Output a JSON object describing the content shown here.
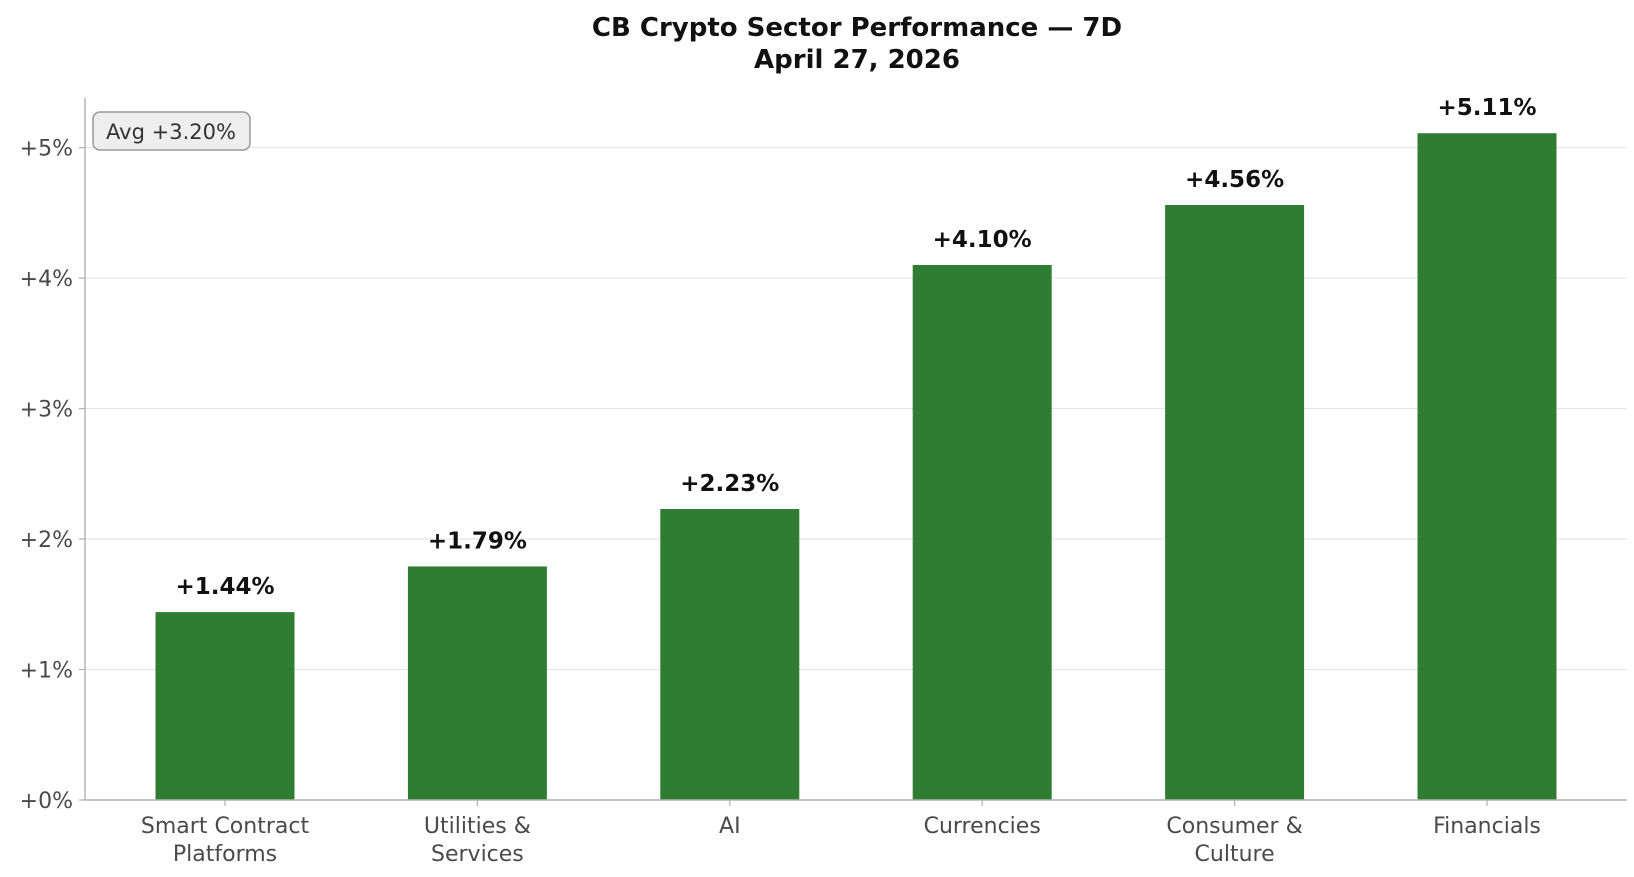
{
  "chart_data": {
    "type": "bar",
    "title": "CB Crypto Sector Performance — 7D",
    "subtitle": "April 27, 2026",
    "categories": [
      [
        "Smart Contract",
        "Platforms"
      ],
      [
        "Utilities &",
        "Services"
      ],
      [
        "AI"
      ],
      [
        "Currencies"
      ],
      [
        "Consumer &",
        "Culture"
      ],
      [
        "Financials"
      ]
    ],
    "values": [
      1.44,
      1.79,
      2.23,
      4.1,
      4.56,
      5.11
    ],
    "value_labels": [
      "+1.44%",
      "+1.79%",
      "+2.23%",
      "+4.10%",
      "+4.56%",
      "+5.11%"
    ],
    "yticks": [
      0,
      1,
      2,
      3,
      4,
      5
    ],
    "ytick_labels": [
      "+0%",
      "+1%",
      "+2%",
      "+3%",
      "+4%",
      "+5%"
    ],
    "ylim": [
      0,
      5.38
    ],
    "xlabel": "",
    "ylabel": "",
    "grid": "y",
    "legend": "none",
    "annotation": {
      "text": "Avg +3.20%",
      "position": "top-left"
    },
    "colors": {
      "bar": "#2f7d32",
      "grid": "#e6e6e6",
      "axis": "#b0b0b0",
      "annotation_bg": "#eeeeee",
      "annotation_border": "#999999"
    }
  }
}
